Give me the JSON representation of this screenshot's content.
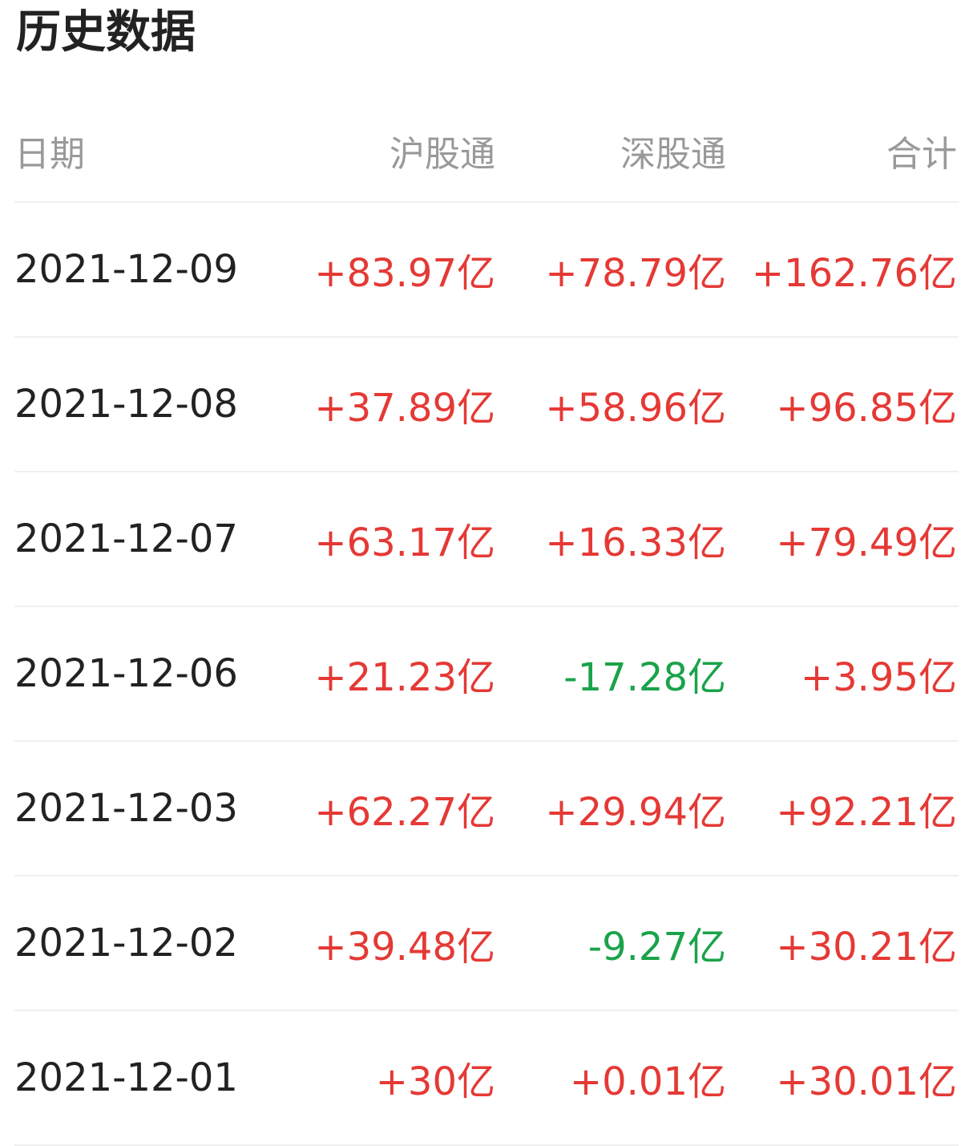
{
  "title": "历史数据",
  "colors": {
    "positive": "#e53935",
    "negative": "#1aa34a"
  },
  "headers": [
    "日期",
    "沪股通",
    "深股通",
    "合计"
  ],
  "rows": [
    {
      "date": "2021-12-09",
      "sh": "+83.97亿",
      "sz": "+78.79亿",
      "total": "+162.76亿"
    },
    {
      "date": "2021-12-08",
      "sh": "+37.89亿",
      "sz": "+58.96亿",
      "total": "+96.85亿"
    },
    {
      "date": "2021-12-07",
      "sh": "+63.17亿",
      "sz": "+16.33亿",
      "total": "+79.49亿"
    },
    {
      "date": "2021-12-06",
      "sh": "+21.23亿",
      "sz": "-17.28亿",
      "total": "+3.95亿"
    },
    {
      "date": "2021-12-03",
      "sh": "+62.27亿",
      "sz": "+29.94亿",
      "total": "+92.21亿"
    },
    {
      "date": "2021-12-02",
      "sh": "+39.48亿",
      "sz": "-9.27亿",
      "total": "+30.21亿"
    },
    {
      "date": "2021-12-01",
      "sh": "+30亿",
      "sz": "+0.01亿",
      "total": "+30.01亿"
    }
  ]
}
